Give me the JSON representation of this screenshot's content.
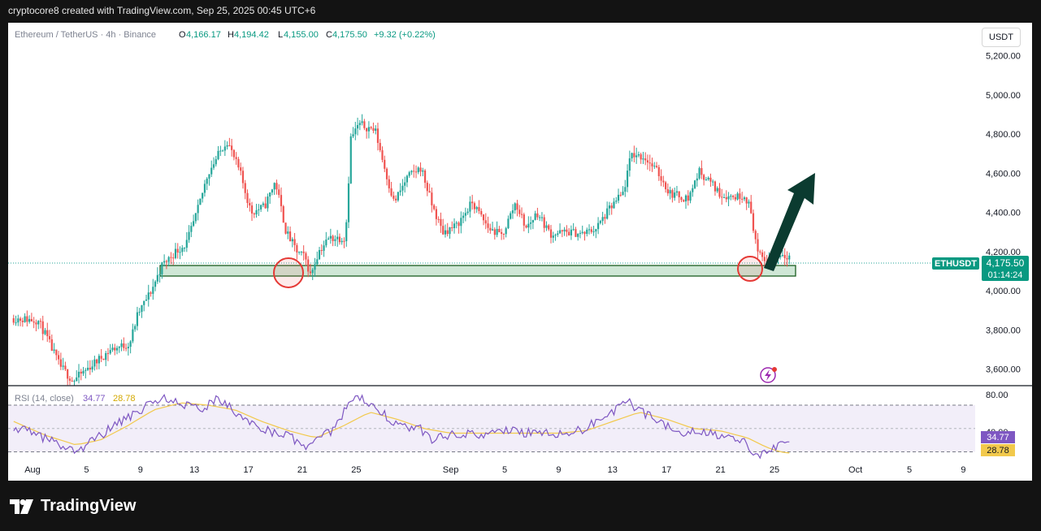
{
  "header": {
    "created_by": "cryptocore8 created with TradingView.com, Sep 25, 2025 00:45 UTC+6"
  },
  "symbol_bar": {
    "name": "Ethereum / TetherUS · 4h · Binance",
    "open_label": "O",
    "open": "4,166.17",
    "high_label": "H",
    "high": "4,194.42",
    "low_label": "L",
    "low": "4,155.00",
    "close_label": "C",
    "close": "4,175.50",
    "change": "+9.32 (+0.22%)"
  },
  "currency_button": "USDT",
  "price_tag": {
    "ticker": "ETHUSDT",
    "price": "4,175.50",
    "countdown": "01:14:24"
  },
  "rsi_panel": {
    "title": "RSI (14, close)",
    "rsi_value": "34.77",
    "ma_value": "28.78"
  },
  "footer": {
    "brand": "TradingView"
  },
  "colors": {
    "up": "#26a69a",
    "down": "#ef5350",
    "rsi_line": "#7e57c2",
    "rsi_ma": "#f2c94c",
    "arrow": "#0b3b30",
    "zone_fill": "#cfe7d6",
    "circle": "#e53935"
  },
  "chart_data": [
    {
      "type": "candlestick",
      "interval": "4h",
      "ylabel": "USDT",
      "yticks": [
        3600,
        3800,
        4000,
        4200,
        4400,
        4600,
        4800,
        5000,
        5200
      ],
      "ytick_labels": [
        "3,600.00",
        "3,800.00",
        "4,000.00",
        "4,200.00",
        "4,400.00",
        "4,600.00",
        "4,800.00",
        "5,000.00",
        "5,200.00"
      ],
      "xticks": [
        "Aug",
        "5",
        "9",
        "13",
        "17",
        "21",
        "25",
        "Sep",
        "5",
        "9",
        "13",
        "17",
        "21",
        "25",
        "Oct",
        "5",
        "9"
      ],
      "xtick_days": [
        0,
        4,
        8,
        12,
        16,
        20,
        24,
        31,
        35,
        39,
        43,
        47,
        51,
        55,
        61,
        65,
        69
      ],
      "ylim": [
        3520,
        5360
      ],
      "path_points": [
        [
          -1.4,
          3860
        ],
        [
          0.4,
          3850
        ],
        [
          1.0,
          3770
        ],
        [
          2.0,
          3620
        ],
        [
          3.0,
          3540
        ],
        [
          4.2,
          3610
        ],
        [
          5.8,
          3700
        ],
        [
          7.2,
          3730
        ],
        [
          7.8,
          3880
        ],
        [
          8.8,
          4000
        ],
        [
          9.6,
          4130
        ],
        [
          10.6,
          4200
        ],
        [
          11.4,
          4240
        ],
        [
          12.2,
          4400
        ],
        [
          13.0,
          4600
        ],
        [
          14.4,
          4770
        ],
        [
          15.4,
          4600
        ],
        [
          16.2,
          4400
        ],
        [
          17.2,
          4430
        ],
        [
          18.0,
          4560
        ],
        [
          18.8,
          4300
        ],
        [
          19.6,
          4200
        ],
        [
          20.2,
          4170
        ],
        [
          20.6,
          4080
        ],
        [
          21.2,
          4200
        ],
        [
          22.0,
          4270
        ],
        [
          23.2,
          4270
        ],
        [
          23.6,
          4780
        ],
        [
          24.2,
          4850
        ],
        [
          25.4,
          4820
        ],
        [
          26.2,
          4600
        ],
        [
          26.8,
          4450
        ],
        [
          27.8,
          4580
        ],
        [
          28.8,
          4630
        ],
        [
          29.6,
          4440
        ],
        [
          30.4,
          4300
        ],
        [
          31.4,
          4330
        ],
        [
          32.6,
          4450
        ],
        [
          33.8,
          4320
        ],
        [
          34.8,
          4280
        ],
        [
          35.8,
          4450
        ],
        [
          36.6,
          4320
        ],
        [
          37.4,
          4400
        ],
        [
          38.4,
          4290
        ],
        [
          39.8,
          4300
        ],
        [
          40.8,
          4290
        ],
        [
          41.8,
          4320
        ],
        [
          42.8,
          4420
        ],
        [
          43.8,
          4500
        ],
        [
          44.4,
          4700
        ],
        [
          45.4,
          4680
        ],
        [
          46.4,
          4600
        ],
        [
          47.2,
          4500
        ],
        [
          48.6,
          4470
        ],
        [
          49.4,
          4610
        ],
        [
          50.2,
          4560
        ],
        [
          51.0,
          4490
        ],
        [
          52.0,
          4480
        ],
        [
          52.8,
          4490
        ],
        [
          53.2,
          4420
        ],
        [
          53.8,
          4180
        ],
        [
          54.4,
          4150
        ],
        [
          55.0,
          4170
        ],
        [
          55.6,
          4190
        ],
        [
          56.2,
          4176
        ]
      ],
      "current_price": 4175.5
    },
    {
      "type": "line",
      "title": "RSI (14, close)",
      "ylim": [
        22,
        86
      ],
      "levels": [
        30,
        50,
        70
      ],
      "ytick_labels": [
        "80.00",
        "40.00"
      ],
      "series": [
        {
          "points": [
            [
              -1.4,
              52
            ],
            [
              0.4,
              44
            ],
            [
              2.0,
              36
            ],
            [
              3.2,
              30
            ],
            [
              4.6,
              40
            ],
            [
              6.0,
              52
            ],
            [
              7.2,
              60
            ],
            [
              8.6,
              70
            ],
            [
              9.8,
              76
            ],
            [
              11.2,
              70
            ],
            [
              12.4,
              66
            ],
            [
              13.6,
              74
            ],
            [
              14.6,
              68
            ],
            [
              15.6,
              58
            ],
            [
              16.8,
              52
            ],
            [
              18.0,
              46
            ],
            [
              19.0,
              44
            ],
            [
              19.8,
              36
            ],
            [
              20.6,
              34
            ],
            [
              21.4,
              42
            ],
            [
              22.4,
              50
            ],
            [
              23.4,
              72
            ],
            [
              24.4,
              76
            ],
            [
              25.6,
              68
            ],
            [
              26.6,
              56
            ],
            [
              27.8,
              50
            ],
            [
              28.6,
              52
            ],
            [
              29.6,
              40
            ],
            [
              30.6,
              44
            ],
            [
              31.8,
              46
            ],
            [
              33.0,
              44
            ],
            [
              34.4,
              46
            ],
            [
              35.4,
              48
            ],
            [
              36.6,
              46
            ],
            [
              37.8,
              48
            ],
            [
              38.8,
              44
            ],
            [
              39.8,
              46
            ],
            [
              41.0,
              50
            ],
            [
              42.2,
              60
            ],
            [
              43.2,
              66
            ],
            [
              44.2,
              72
            ],
            [
              45.2,
              64
            ],
            [
              46.4,
              58
            ],
            [
              47.4,
              48
            ],
            [
              48.2,
              44
            ],
            [
              49.2,
              50
            ],
            [
              50.2,
              46
            ],
            [
              51.0,
              44
            ],
            [
              51.8,
              40
            ],
            [
              52.8,
              38
            ],
            [
              53.4,
              26
            ],
            [
              54.0,
              28
            ],
            [
              54.8,
              34
            ],
            [
              55.6,
              36
            ],
            [
              56.2,
              34.77
            ]
          ]
        },
        {
          "points": [
            [
              -1.4,
              56
            ],
            [
              1.0,
              44
            ],
            [
              3.2,
              36
            ],
            [
              5.0,
              40
            ],
            [
              7.0,
              52
            ],
            [
              9.0,
              66
            ],
            [
              11.0,
              72
            ],
            [
              13.0,
              70
            ],
            [
              15.0,
              66
            ],
            [
              17.0,
              56
            ],
            [
              19.0,
              48
            ],
            [
              21.0,
              42
            ],
            [
              23.0,
              52
            ],
            [
              25.0,
              64
            ],
            [
              27.0,
              58
            ],
            [
              29.0,
              50
            ],
            [
              31.0,
              46
            ],
            [
              33.0,
              46
            ],
            [
              35.0,
              46
            ],
            [
              37.0,
              46
            ],
            [
              39.0,
              46
            ],
            [
              41.0,
              48
            ],
            [
              43.0,
              56
            ],
            [
              45.0,
              64
            ],
            [
              47.0,
              58
            ],
            [
              49.0,
              50
            ],
            [
              51.0,
              48
            ],
            [
              53.0,
              42
            ],
            [
              54.4,
              34
            ],
            [
              55.4,
              30
            ],
            [
              56.2,
              28.78
            ]
          ]
        }
      ]
    }
  ]
}
